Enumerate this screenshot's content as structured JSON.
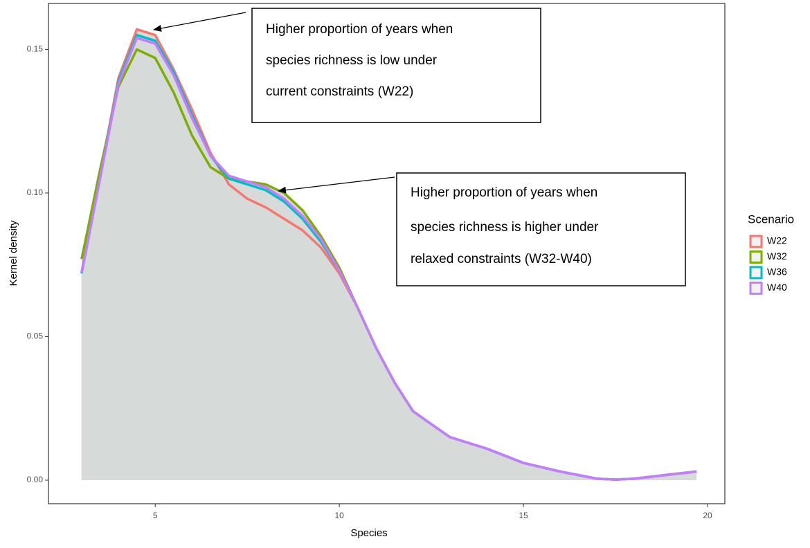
{
  "chart_data": {
    "type": "density",
    "xlabel": "Species",
    "ylabel": "Kernel density",
    "x": [
      3,
      3.5,
      4,
      4.5,
      5,
      5.5,
      6,
      6.5,
      7,
      7.5,
      8,
      8.5,
      9,
      9.5,
      10,
      10.5,
      11,
      11.5,
      12,
      13,
      14,
      15,
      16,
      17,
      17.5,
      18,
      19,
      19.7
    ],
    "series": [
      {
        "name": "W22",
        "color": "#F8766D",
        "values": [
          0.0725,
          0.106,
          0.14,
          0.157,
          0.155,
          0.143,
          0.129,
          0.114,
          0.103,
          0.098,
          0.095,
          0.091,
          0.087,
          0.081,
          0.072,
          0.06,
          0.046,
          0.034,
          0.024,
          0.015,
          0.011,
          0.006,
          0.003,
          0.0005,
          0.0002,
          0.0005,
          0.002,
          0.003
        ]
      },
      {
        "name": "W32",
        "color": "#7CAE00",
        "values": [
          0.077,
          0.108,
          0.137,
          0.15,
          0.147,
          0.135,
          0.12,
          0.109,
          0.105,
          0.104,
          0.103,
          0.1,
          0.094,
          0.085,
          0.074,
          0.06,
          0.046,
          0.034,
          0.024,
          0.015,
          0.011,
          0.006,
          0.003,
          0.0005,
          0.0002,
          0.0005,
          0.002,
          0.003
        ]
      },
      {
        "name": "W36",
        "color": "#00BFC4",
        "values": [
          0.072,
          0.105,
          0.139,
          0.155,
          0.153,
          0.142,
          0.127,
          0.113,
          0.105,
          0.103,
          0.101,
          0.097,
          0.091,
          0.083,
          0.073,
          0.06,
          0.046,
          0.034,
          0.024,
          0.015,
          0.011,
          0.006,
          0.003,
          0.0005,
          0.0002,
          0.0005,
          0.002,
          0.003
        ]
      },
      {
        "name": "W40",
        "color": "#C77CFF",
        "values": [
          0.0723,
          0.105,
          0.138,
          0.154,
          0.152,
          0.141,
          0.126,
          0.113,
          0.106,
          0.104,
          0.102,
          0.098,
          0.092,
          0.084,
          0.073,
          0.06,
          0.046,
          0.034,
          0.024,
          0.015,
          0.011,
          0.006,
          0.003,
          0.0005,
          0.0002,
          0.0005,
          0.002,
          0.003
        ]
      }
    ],
    "fill_color": "#d6dad9",
    "xlim": [
      2.1,
      20.47
    ],
    "ylim": [
      -0.0082,
      0.166
    ],
    "xticks": [
      5,
      10,
      15,
      20
    ],
    "yticks": [
      {
        "value": 0,
        "label": "0.00"
      },
      0.05,
      {
        "value": 0.1,
        "label": "0.10"
      },
      0.15
    ],
    "legend_title": "Scenario",
    "legend": "right",
    "annotations": [
      {
        "lines": [
          "Higher proportion of years when",
          "species richness is low under",
          "current constraints (W22)"
        ]
      },
      {
        "lines": [
          "Higher proportion of years when",
          "species richness is higher under",
          "relaxed constraints (W32-W40)"
        ]
      }
    ]
  }
}
